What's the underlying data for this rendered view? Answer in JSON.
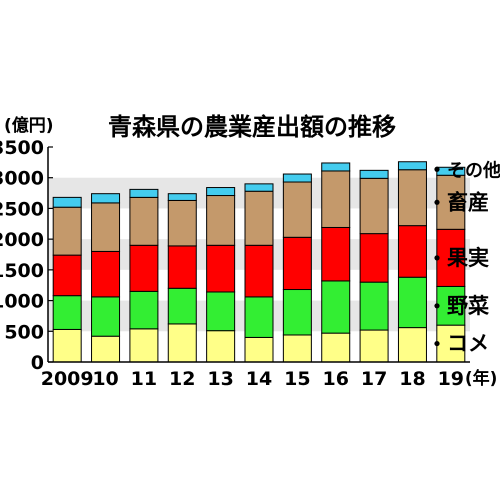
{
  "chart_data": {
    "type": "bar",
    "stacked": true,
    "title": "青森県の農業産出額の推移",
    "ylabel": "(億円)",
    "xunit": "(年)",
    "ylim": [
      0,
      3500
    ],
    "yticks": [
      0,
      500,
      1000,
      1500,
      2000,
      2500,
      3000,
      3500
    ],
    "categories": [
      "2009",
      "10",
      "11",
      "12",
      "13",
      "14",
      "15",
      "16",
      "17",
      "18",
      "19"
    ],
    "grid_bands": true,
    "legend_placement": "right, labels beside last bar",
    "series": [
      {
        "name": "コメ",
        "color": "#ffff88",
        "values": [
          530,
          420,
          540,
          620,
          510,
          400,
          440,
          470,
          520,
          560,
          600
        ]
      },
      {
        "name": "野菜",
        "color": "#33ee33",
        "values": [
          550,
          640,
          610,
          580,
          630,
          660,
          740,
          850,
          780,
          820,
          630
        ]
      },
      {
        "name": "果実",
        "color": "#ff0000",
        "values": [
          660,
          740,
          750,
          690,
          760,
          840,
          850,
          870,
          790,
          840,
          930
        ]
      },
      {
        "name": "畜産",
        "color": "#c4996b",
        "values": [
          780,
          790,
          780,
          740,
          810,
          880,
          900,
          920,
          900,
          910,
          880
        ]
      },
      {
        "name": "その他",
        "color": "#44ccee",
        "values": [
          160,
          150,
          130,
          110,
          130,
          120,
          130,
          130,
          130,
          130,
          130
        ]
      }
    ]
  }
}
